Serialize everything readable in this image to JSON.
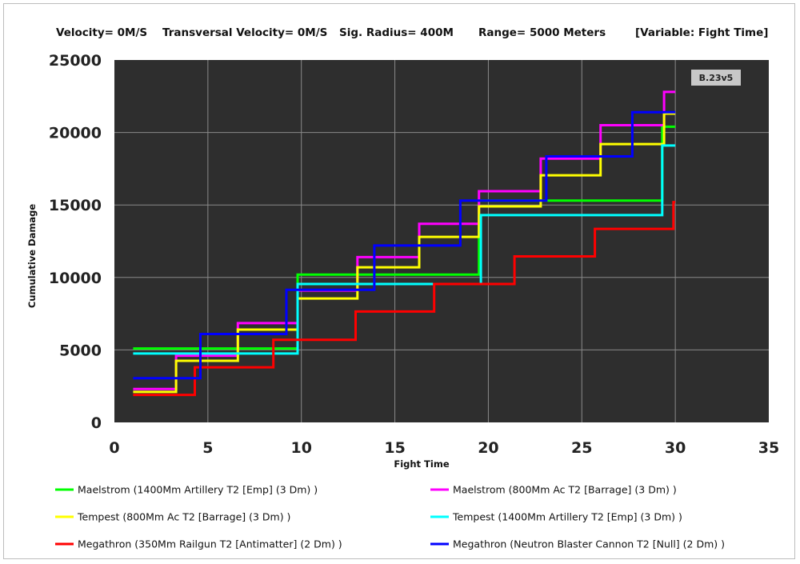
{
  "header": {
    "velocity": "Velocity= 0M/S",
    "transversal": "Transversal Velocity= 0M/S",
    "sig_radius": "Sig. Radius= 400M",
    "range": "Range= 5000 Meters",
    "variable": "[Variable: Fight Time]"
  },
  "version_badge": "B.23v5",
  "colors": {
    "plot_background": "#2e2e2e",
    "grid": "#8a8a8a",
    "badge_background": "#c8c8c8"
  },
  "chart_data": {
    "type": "line",
    "xlabel": "Fight Time",
    "ylabel": "Cumulative Damage",
    "xlim": [
      0,
      35
    ],
    "ylim": [
      0,
      25000
    ],
    "x_ticks": [
      "0",
      "5",
      "10",
      "15",
      "20",
      "25",
      "30",
      "35"
    ],
    "y_ticks": [
      "0",
      "5000",
      "10000",
      "15000",
      "20000",
      "25000"
    ],
    "grid": true,
    "legend_position": "bottom",
    "series": [
      {
        "name": "Maelstrom (1400Mm Artillery T2 [Emp] (3 Dm) )",
        "color": "#00ff00",
        "x": [
          1,
          9.8,
          9.8,
          19.5,
          19.5,
          29.3,
          29.3,
          30
        ],
        "y": [
          5100,
          5100,
          10200,
          10200,
          15300,
          15300,
          20400,
          20400
        ]
      },
      {
        "name": "Maelstrom (800Mm Ac T2 [Barrage] (3 Dm) )",
        "color": "#ff00ff",
        "x": [
          1,
          3.3,
          3.3,
          6.6,
          6.6,
          9.8,
          9.8,
          13,
          13,
          16.3,
          16.3,
          19.5,
          19.5,
          22.8,
          22.8,
          26,
          26,
          29.4,
          29.4,
          30
        ],
        "y": [
          2300,
          2300,
          4600,
          4600,
          6850,
          6850,
          9100,
          9100,
          11400,
          11400,
          13700,
          13700,
          15950,
          15950,
          18200,
          18200,
          20500,
          20500,
          22800,
          22800
        ]
      },
      {
        "name": "Tempest (800Mm Ac T2 [Barrage] (3 Dm) )",
        "color": "#ffff00",
        "x": [
          1,
          3.3,
          3.3,
          6.6,
          6.6,
          9.8,
          9.8,
          13,
          13,
          16.3,
          16.3,
          19.5,
          19.5,
          22.8,
          22.8,
          26,
          26,
          29.4,
          29.4,
          30
        ],
        "y": [
          2100,
          2100,
          4250,
          4250,
          6400,
          6400,
          8550,
          8550,
          10700,
          10700,
          12800,
          12800,
          14900,
          14900,
          17050,
          17050,
          19200,
          19200,
          21300,
          21300
        ]
      },
      {
        "name": "Tempest (1400Mm Artillery T2 [Emp] (3 Dm) )",
        "color": "#00ffff",
        "x": [
          1,
          9.8,
          9.8,
          19.6,
          19.6,
          29.3,
          29.3,
          30
        ],
        "y": [
          4750,
          4750,
          9550,
          9550,
          14300,
          14300,
          19100,
          19100
        ]
      },
      {
        "name": "Megathron (350Mm Railgun T2 [Antimatter] (2 Dm) )",
        "color": "#ff0000",
        "x": [
          1,
          4.3,
          4.3,
          8.5,
          8.5,
          12.9,
          12.9,
          17.1,
          17.1,
          21.4,
          21.4,
          25.7,
          25.7,
          29.9,
          29.9,
          30
        ],
        "y": [
          1900,
          1900,
          3800,
          3800,
          5700,
          5700,
          7650,
          7650,
          9550,
          9550,
          11450,
          11450,
          13350,
          13350,
          15200,
          15200
        ]
      },
      {
        "name": "Megathron (Neutron Blaster Cannon T2 [Null] (2 Dm) )",
        "color": "#0000ff",
        "x": [
          1,
          4.6,
          4.6,
          9.2,
          9.2,
          13.9,
          13.9,
          18.5,
          18.5,
          23.1,
          23.1,
          27.7,
          27.7,
          30
        ],
        "y": [
          3050,
          3050,
          6100,
          6100,
          9150,
          9150,
          12200,
          12200,
          15300,
          15300,
          18350,
          18350,
          21400,
          21400
        ]
      }
    ]
  }
}
